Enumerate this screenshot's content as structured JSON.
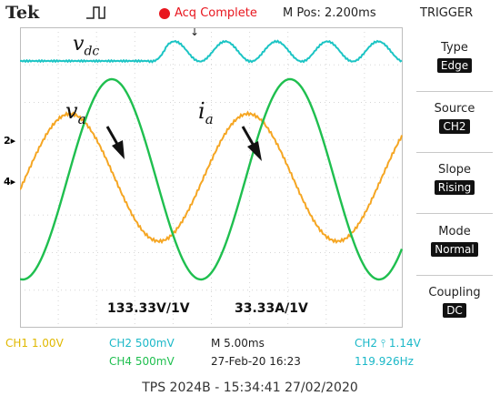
{
  "header": {
    "brand": "Tek",
    "acq_status": "Acq Complete",
    "mpos": "M Pos: 2.200ms",
    "trigger_label": "TRIGGER",
    "trigger_marker": "↓",
    "acq_color": "#e8161e"
  },
  "menu": [
    {
      "title": "Type",
      "value": "Edge"
    },
    {
      "title": "Source",
      "value": "CH2"
    },
    {
      "title": "Slope",
      "value": "Rising"
    },
    {
      "title": "Mode",
      "value": "Normal"
    },
    {
      "title": "Coupling",
      "value": "DC"
    }
  ],
  "channel_markers": {
    "ch2": "2▸",
    "ch4": "4▸"
  },
  "labels": {
    "vdc_main": "v",
    "vdc_sub": "dc",
    "va_main": "v",
    "va_sub": "a",
    "ia_main": "i",
    "ia_sub": "a",
    "scale_v": "133.33V/1V",
    "scale_i": "33.33A/1V"
  },
  "status": {
    "ch1": "CH1  1.00V",
    "ch2": "CH2  500mV",
    "ch4": "CH4  500mV",
    "timebase": "M 5.00ms",
    "datetime": "27-Feb-20 16:23",
    "trigger_setting": "CH2 ⫯ 1.14V",
    "frequency": "119.926Hz"
  },
  "colors": {
    "vdc": "#1bc4c4",
    "va": "#1fbf4f",
    "ia": "#f5a623",
    "ch1": "#e0b800",
    "ch2": "#1bb8c8",
    "ch4": "#1fbf4f"
  },
  "footer": "TPS 2024B - 15:34:41   27/02/2020"
}
